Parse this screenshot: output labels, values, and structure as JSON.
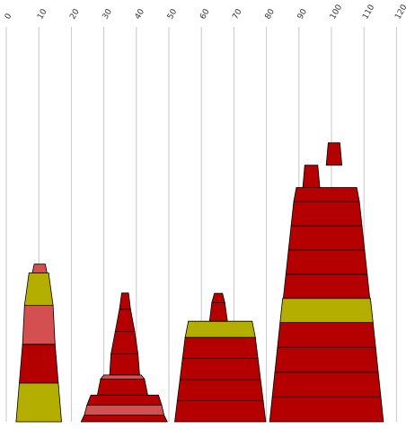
{
  "chart_data": {
    "type": "stacked-trapezoid",
    "title": "",
    "xlabel": "",
    "ylabel": "",
    "xlim": [
      0,
      120
    ],
    "x_ticks": [
      0,
      10,
      20,
      30,
      40,
      50,
      60,
      70,
      80,
      90,
      100,
      110,
      120
    ],
    "grid": true,
    "colors": {
      "red": "#b40000",
      "pink": "#d45050",
      "olive": "#b3ae00",
      "edge": "#000000"
    },
    "groups": [
      {
        "segments": [
          {
            "bottom_left": 3,
            "bottom_right": 17,
            "top_left": 4,
            "top_right": 16,
            "height": 12.5,
            "color": "olive"
          },
          {
            "bottom_left": 4,
            "bottom_right": 16,
            "top_left": 5,
            "top_right": 15,
            "height": 12.5,
            "color": "red"
          },
          {
            "bottom_left": 5,
            "bottom_right": 15,
            "top_left": 5.6,
            "top_right": 14.4,
            "height": 12.5,
            "color": "pink"
          },
          {
            "bottom_left": 5.6,
            "bottom_right": 14.4,
            "top_left": 7,
            "top_right": 13,
            "height": 10.5,
            "color": "olive"
          },
          {
            "bottom_left": 8,
            "bottom_right": 12.5,
            "top_left": 8.6,
            "top_right": 12,
            "height": 2.8,
            "color": "pink"
          }
        ]
      },
      {
        "segments": [
          {
            "bottom_left": 23,
            "bottom_right": 49.5,
            "top_left": 24,
            "top_right": 48.5,
            "height": 2.2,
            "color": "red"
          },
          {
            "bottom_left": 24,
            "bottom_right": 48.5,
            "top_left": 24.8,
            "top_right": 47.8,
            "height": 3.2,
            "color": "pink"
          },
          {
            "bottom_left": 24.8,
            "bottom_right": 47.8,
            "top_left": 26,
            "top_right": 46.8,
            "height": 3.2,
            "color": "red"
          },
          {
            "bottom_left": 28,
            "bottom_right": 43.5,
            "top_left": 29,
            "top_right": 42.5,
            "height": 5.2,
            "color": "red"
          },
          {
            "bottom_left": 29,
            "bottom_right": 42.5,
            "top_left": 30,
            "top_right": 41.5,
            "height": 1.3,
            "color": "pink"
          },
          {
            "bottom_left": 31.8,
            "bottom_right": 41,
            "top_left": 32.2,
            "top_right": 40.5,
            "height": 6.8,
            "color": "red"
          },
          {
            "bottom_left": 32.2,
            "bottom_right": 40.5,
            "top_left": 33.5,
            "top_right": 39.5,
            "height": 7.2,
            "color": "red"
          },
          {
            "bottom_left": 33.5,
            "bottom_right": 39.5,
            "top_left": 34.8,
            "top_right": 38.2,
            "height": 7.2,
            "color": "red"
          },
          {
            "bottom_left": 34.8,
            "bottom_right": 38.2,
            "top_left": 35.5,
            "top_right": 37.6,
            "height": 5.2,
            "color": "red"
          }
        ]
      },
      {
        "segments": [
          {
            "bottom_left": 51.8,
            "bottom_right": 79.8,
            "top_left": 52.6,
            "top_right": 79,
            "height": 6.8,
            "color": "red"
          },
          {
            "bottom_left": 52.6,
            "bottom_right": 79,
            "top_left": 53.4,
            "top_right": 78.2,
            "height": 6.8,
            "color": "red"
          },
          {
            "bottom_left": 53.4,
            "bottom_right": 78.2,
            "top_left": 54.2,
            "top_right": 77.4,
            "height": 6.8,
            "color": "red"
          },
          {
            "bottom_left": 54.2,
            "bottom_right": 77.4,
            "top_left": 55,
            "top_right": 76.6,
            "height": 6.8,
            "color": "red"
          },
          {
            "bottom_left": 55,
            "bottom_right": 76.6,
            "top_left": 56,
            "top_right": 75.6,
            "height": 5.2,
            "color": "olive"
          },
          {
            "bottom_left": 62.5,
            "bottom_right": 68,
            "top_left": 63.2,
            "top_right": 67.2,
            "height": 6,
            "color": "red"
          },
          {
            "bottom_left": 63.2,
            "bottom_right": 67.2,
            "top_left": 64,
            "top_right": 66.5,
            "height": 3,
            "color": "red"
          }
        ]
      },
      {
        "segments": [
          {
            "bottom_left": 81,
            "bottom_right": 116,
            "top_left": 81.8,
            "top_right": 115.2,
            "height": 8,
            "color": "red"
          },
          {
            "bottom_left": 81.8,
            "bottom_right": 115.2,
            "top_left": 82.6,
            "top_right": 114.4,
            "height": 8,
            "color": "red"
          },
          {
            "bottom_left": 82.6,
            "bottom_right": 114.4,
            "top_left": 83.4,
            "top_right": 113.6,
            "height": 8,
            "color": "red"
          },
          {
            "bottom_left": 83.4,
            "bottom_right": 113.6,
            "top_left": 84.2,
            "top_right": 112.8,
            "height": 8,
            "color": "red"
          },
          {
            "bottom_left": 84.2,
            "bottom_right": 112.8,
            "top_left": 85,
            "top_right": 112,
            "height": 7.8,
            "color": "olive"
          },
          {
            "bottom_left": 85.2,
            "bottom_right": 111.8,
            "top_left": 86,
            "top_right": 111,
            "height": 7.8,
            "color": "red"
          },
          {
            "bottom_left": 86,
            "bottom_right": 111,
            "top_left": 86.8,
            "top_right": 110.2,
            "height": 7.8,
            "color": "red"
          },
          {
            "bottom_left": 86.8,
            "bottom_right": 110.2,
            "top_left": 87.6,
            "top_right": 109.4,
            "height": 7.8,
            "color": "red"
          },
          {
            "bottom_left": 87.6,
            "bottom_right": 109.4,
            "top_left": 88.4,
            "top_right": 108.6,
            "height": 7.8,
            "color": "red"
          },
          {
            "bottom_left": 88.4,
            "bottom_right": 108.6,
            "top_left": 89.2,
            "top_right": 107.8,
            "height": 4.5,
            "color": "red"
          },
          {
            "bottom_left": 91.2,
            "bottom_right": 96.4,
            "top_left": 91.8,
            "top_right": 95.8,
            "height": 7.2,
            "color": "red"
          },
          {
            "bottom_left": 98.4,
            "bottom_right": 103.2,
            "top_left": 99,
            "top_right": 102.6,
            "height": 7.2,
            "color": "red"
          }
        ]
      }
    ]
  }
}
